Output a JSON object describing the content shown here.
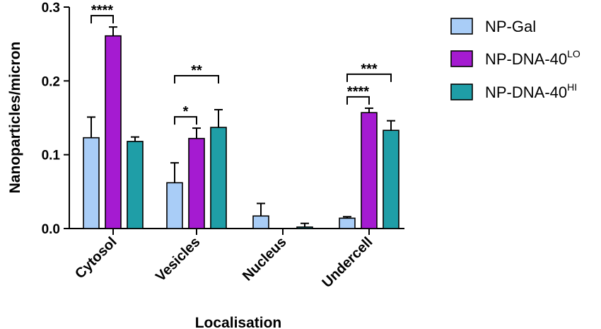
{
  "chart_data": {
    "type": "bar",
    "xlabel": "Localisation",
    "ylabel": "Nanoparticles/micron",
    "ylim": [
      0,
      0.3
    ],
    "yticks": [
      "0.0",
      "0.1",
      "0.2",
      "0.3"
    ],
    "categories": [
      "Cytosol",
      "Vesicles",
      "Nucleus",
      "Undercell"
    ],
    "series": [
      {
        "name": "NP-Gal",
        "sup": "",
        "color": "#a9cdf7",
        "values": [
          0.123,
          0.062,
          0.017,
          0.014
        ],
        "errors": [
          0.028,
          0.027,
          0.017,
          0.002
        ]
      },
      {
        "name": "NP-DNA-40",
        "sup": "LO",
        "color": "#a51bd1",
        "values": [
          0.261,
          0.122,
          0.0,
          0.157
        ],
        "errors": [
          0.012,
          0.014,
          0.0,
          0.006
        ]
      },
      {
        "name": "NP-DNA-40",
        "sup": "HI",
        "color": "#1f9ea7",
        "values": [
          0.118,
          0.137,
          0.002,
          0.133
        ],
        "errors": [
          0.006,
          0.024,
          0.005,
          0.013
        ]
      }
    ],
    "legend_position": "right",
    "significance": [
      {
        "category": 0,
        "from": 0,
        "to": 1,
        "label": "****"
      },
      {
        "category": 1,
        "from": 0,
        "to": 1,
        "label": "*"
      },
      {
        "category": 1,
        "from": 0,
        "to": 2,
        "label": "**"
      },
      {
        "category": 3,
        "from": 0,
        "to": 1,
        "label": "****"
      },
      {
        "category": 3,
        "from": 0,
        "to": 2,
        "label": "***"
      }
    ]
  }
}
